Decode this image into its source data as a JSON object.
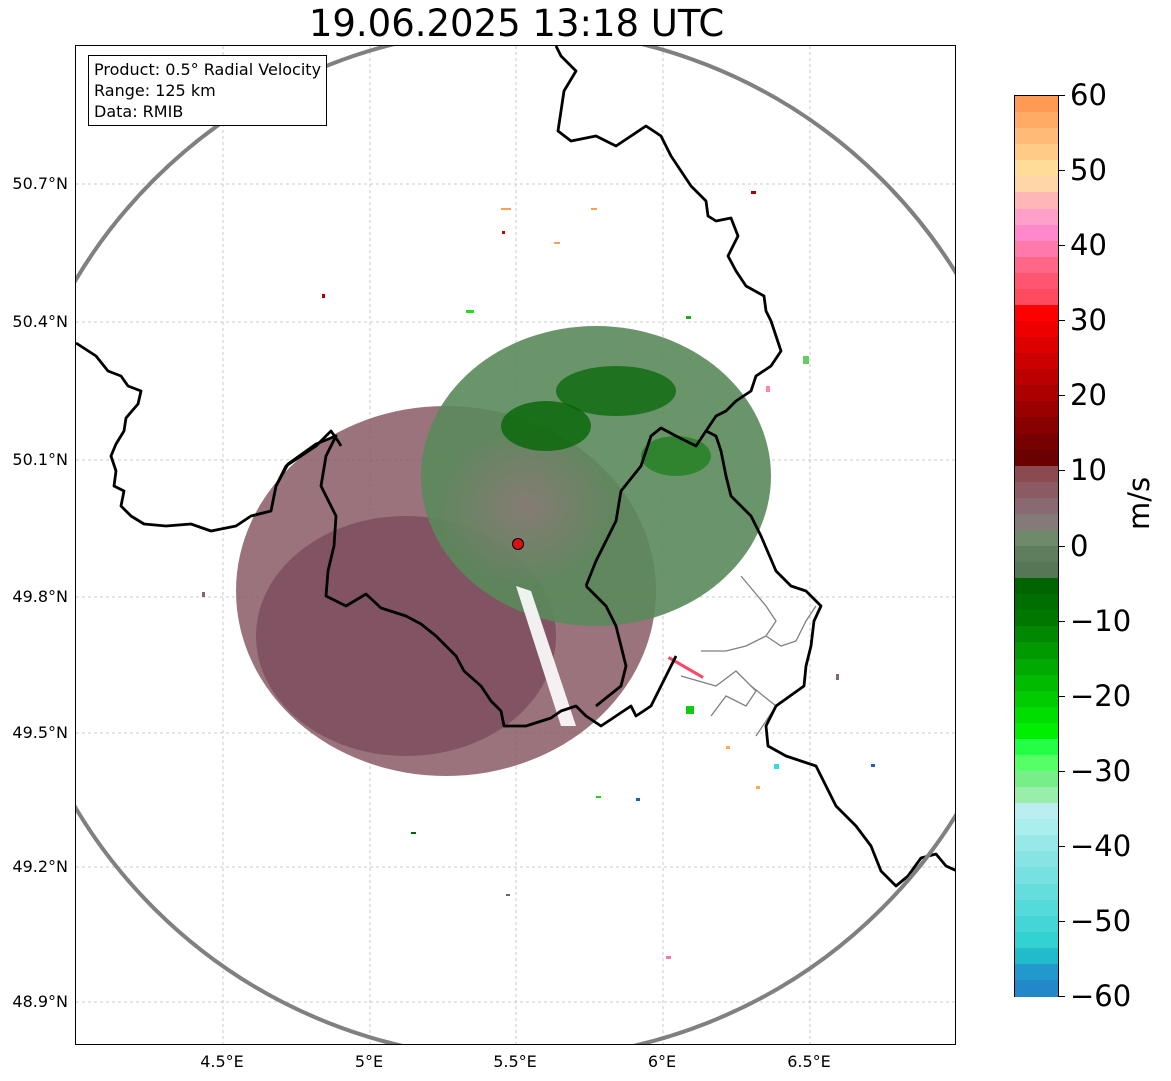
{
  "title": "19.06.2025 13:18 UTC",
  "info_box": {
    "product": "Product: 0.5° Radial Velocity",
    "range": "Range: 125 km",
    "data": "Data: RMIB"
  },
  "latitude_labels": [
    "50.7°N",
    "50.4°N",
    "50.1°N",
    "49.8°N",
    "49.5°N",
    "49.2°N",
    "48.9°N"
  ],
  "longitude_labels": [
    "4.5°E",
    "5°E",
    "5.5°E",
    "6°E",
    "6.5°E"
  ],
  "colorbar": {
    "unit": "m/s",
    "ticks": [
      "60",
      "50",
      "40",
      "30",
      "20",
      "10",
      "0",
      "−10",
      "−20",
      "−30",
      "−40",
      "−50",
      "−60"
    ],
    "range": [
      -60,
      60
    ]
  },
  "map": {
    "radar_site": {
      "lon": 5.5,
      "lat": 49.915
    },
    "range_ring_km": 125,
    "lon_range": [
      4.0,
      7.0
    ],
    "lat_range": [
      48.8,
      51.0
    ],
    "colors": {
      "range_ring": "#808080",
      "border": "#000000",
      "admin_border": "#808080",
      "radar_marker": "#dd1111",
      "outbound_echo": "#8a5a66",
      "inbound_echo": "#5a8a5a",
      "strong_inbound": "#006400"
    }
  }
}
